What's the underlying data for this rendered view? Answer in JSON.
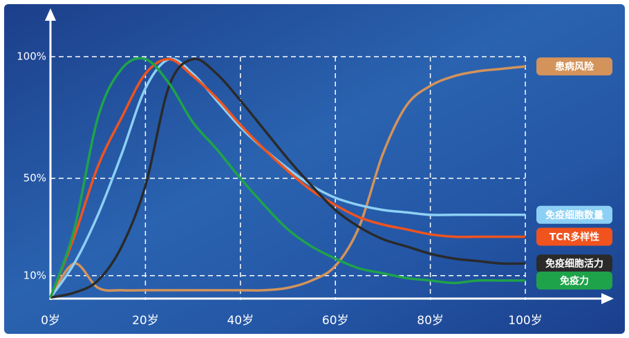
{
  "chart_data": {
    "type": "line",
    "x": [
      0,
      5,
      10,
      15,
      20,
      25,
      30,
      35,
      40,
      45,
      50,
      55,
      60,
      65,
      70,
      75,
      80,
      85,
      90,
      95,
      100
    ],
    "xlim": [
      0,
      100
    ],
    "xticks": [
      {
        "value": 0,
        "label": "0岁"
      },
      {
        "value": 20,
        "label": "20岁"
      },
      {
        "value": 40,
        "label": "40岁"
      },
      {
        "value": 60,
        "label": "60岁"
      },
      {
        "value": 80,
        "label": "80岁"
      },
      {
        "value": 100,
        "label": "100岁"
      }
    ],
    "ylim": [
      0,
      100
    ],
    "yticks": [
      {
        "value": 10,
        "label": "10%"
      },
      {
        "value": 50,
        "label": "50%"
      },
      {
        "value": 100,
        "label": "100%"
      }
    ],
    "grid": true,
    "series": [
      {
        "name": "患病风险",
        "color": "#d4935a",
        "values": [
          1,
          15,
          5,
          4,
          4,
          4,
          4,
          4,
          4,
          4,
          5,
          8,
          14,
          30,
          60,
          80,
          88,
          92,
          94,
          95,
          96
        ]
      },
      {
        "name": "免疫细胞数量",
        "color": "#8dd0f5",
        "values": [
          1,
          15,
          35,
          60,
          87,
          99,
          93,
          82,
          71,
          62,
          54,
          47,
          42,
          39,
          37,
          36,
          35,
          35,
          35,
          35,
          35
        ]
      },
      {
        "name": "TCR多样性",
        "color": "#f0531e",
        "values": [
          1,
          26,
          55,
          75,
          93,
          99,
          92,
          83,
          72,
          62,
          53,
          45,
          39,
          34,
          31,
          29,
          27,
          26,
          26,
          26,
          26
        ]
      },
      {
        "name": "免疫细胞活力",
        "color": "#2a2a2a",
        "values": [
          1,
          3,
          8,
          22,
          47,
          88,
          99,
          93,
          82,
          70,
          58,
          47,
          37,
          30,
          25,
          22,
          19,
          17,
          16,
          15,
          15
        ]
      },
      {
        "name": "免疫力",
        "color": "#1fa34a",
        "values": [
          1,
          29,
          75,
          95,
          99,
          89,
          73,
          62,
          50,
          39,
          29,
          22,
          17,
          13,
          11,
          9,
          8,
          7,
          8,
          8,
          8
        ]
      }
    ]
  }
}
